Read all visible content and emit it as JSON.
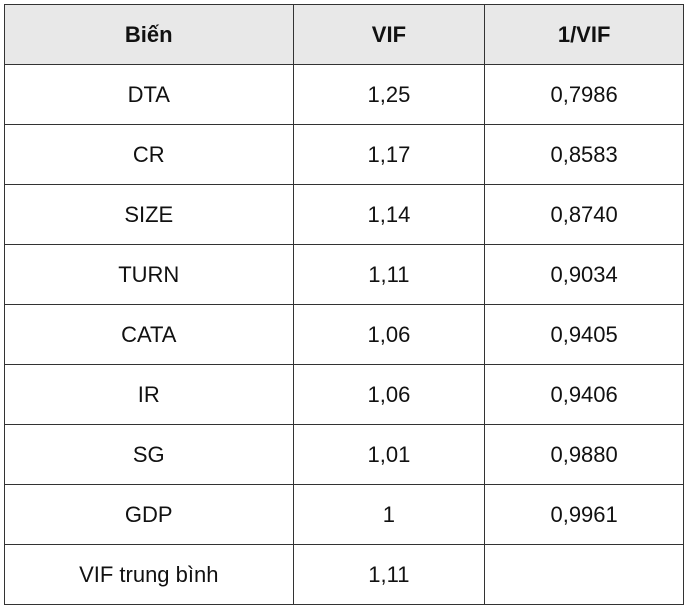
{
  "table": {
    "header": [
      "Biến",
      "VIF",
      "1/VIF"
    ],
    "rows": [
      [
        "DTA",
        "1,25",
        "0,7986"
      ],
      [
        "CR",
        "1,17",
        "0,8583"
      ],
      [
        "SIZE",
        "1,14",
        "0,8740"
      ],
      [
        "TURN",
        "1,11",
        "0,9034"
      ],
      [
        "CATA",
        "1,06",
        "0,9405"
      ],
      [
        "IR",
        "1,06",
        "0,9406"
      ],
      [
        "SG",
        "1,01",
        "0,9880"
      ],
      [
        "GDP",
        "1",
        "0,9961"
      ],
      [
        "VIF trung bình",
        "1,11"
      ]
    ]
  }
}
